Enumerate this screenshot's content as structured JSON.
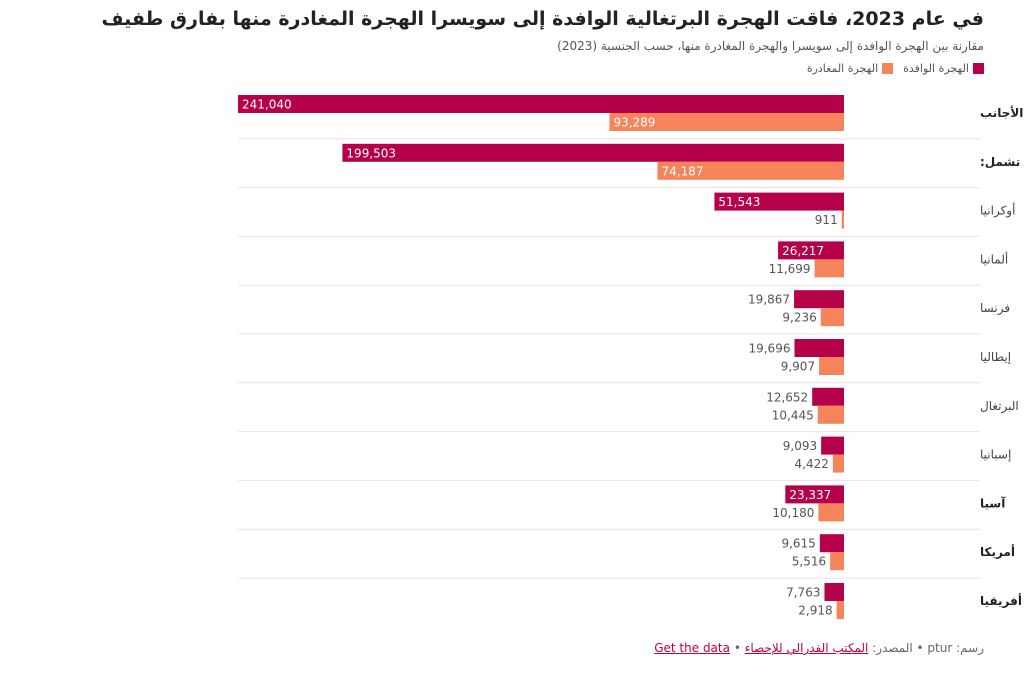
{
  "header": {
    "title": "في عام 2023، فاقت الهجرة البرتغالية الوافدة إلى سويسرا الهجرة المغادرة منها بفارق طفيف",
    "subtitle": "مقارنة بين الهجرة الوافدة إلى سويسرا والهجرة المغادرة منها، حسب الجنسية (2023)"
  },
  "footer": {
    "credit": "رسم: ptur • المصدر:",
    "source_link": "المكتب الفدرالي للإحصاء",
    "separator": "•",
    "data_link": "Get the data"
  },
  "colors": {
    "immigration": "#b5004a",
    "emigration": "#f5845a",
    "grid": "#e4e4e4"
  },
  "chart_data": {
    "type": "bar",
    "orientation": "horizontal",
    "direction": "right-to-left",
    "grid": false,
    "legend_position": "top-right",
    "categories": [
      "إجمالي عدد السكان الأجانب",
      "أوروبا، تشمل:",
      "أوكرانيا",
      "ألمانيا",
      "فرنسا",
      "إيطاليا",
      "البرتغال",
      "إسبانيا",
      "آسيا",
      "أمريكا",
      "أفريقيا"
    ],
    "bold_categories": [
      0,
      1,
      8,
      9,
      10
    ],
    "series": [
      {
        "name": "الهجرة الوافدة",
        "values": [
          241040,
          199503,
          51543,
          26217,
          19867,
          19696,
          12652,
          9093,
          23337,
          9615,
          7763
        ],
        "labels": [
          "241,040",
          "199,503",
          "51,543",
          "26,217",
          "19,867",
          "19,696",
          "12,652",
          "9,093",
          "23,337",
          "9,615",
          "7,763"
        ]
      },
      {
        "name": "الهجرة المغادرة",
        "values": [
          93289,
          74187,
          911,
          11699,
          9236,
          9907,
          10445,
          4422,
          10180,
          5516,
          2918
        ],
        "labels": [
          "93,289",
          "74,187",
          "911",
          "11,699",
          "9,236",
          "9,907",
          "10,445",
          "4,422",
          "10,180",
          "5,516",
          "2,918"
        ]
      }
    ],
    "xlim": [
      0,
      241040
    ]
  }
}
